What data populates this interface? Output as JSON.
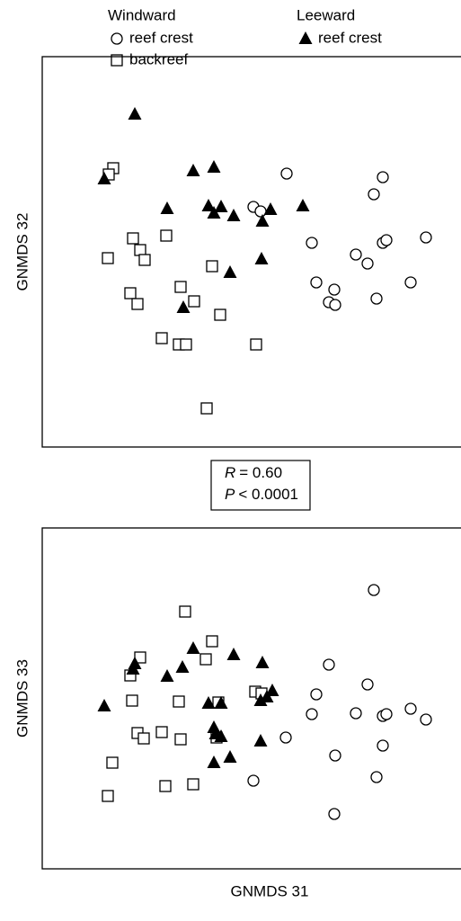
{
  "legend_groups": [
    "Windward",
    "Leeward"
  ],
  "chart_data": [
    {
      "type": "scatter",
      "ylabel": "GNMDS 32",
      "xlim": [
        0,
        466
      ],
      "ylim": [
        0,
        434
      ],
      "stat_lines": [
        [
          "R",
          "= 0.60"
        ],
        [
          "P",
          "< 0.0001"
        ]
      ],
      "series": [
        {
          "name": "reef crest",
          "group": 0,
          "marker": "circle",
          "color": "#000000",
          "x": [
            272,
            379,
            369,
            235,
            243,
            300,
            349,
            379,
            383,
            427,
            362,
            305,
            325,
            319,
            326,
            372,
            410
          ],
          "values": [
            304,
            300,
            281,
            267,
            262,
            227,
            214,
            227,
            230,
            233,
            204,
            183,
            175,
            161,
            158,
            165,
            183
          ]
        },
        {
          "name": "backreef",
          "group": 0,
          "marker": "square",
          "color": "#000000",
          "x": [
            79,
            74,
            101,
            138,
            109,
            114,
            73,
            189,
            98,
            106,
            154,
            169,
            198,
            133,
            152,
            160,
            238,
            183
          ],
          "values": [
            310,
            303,
            232,
            235,
            219,
            208,
            210,
            201,
            171,
            159,
            178,
            162,
            147,
            121,
            114,
            114,
            114,
            43
          ]
        },
        {
          "name": "reef crest",
          "group": 1,
          "marker": "triangle",
          "color": "#000000",
          "x": [
            103,
            69,
            168,
            191,
            139,
            185,
            199,
            191,
            213,
            254,
            290,
            245,
            244,
            209,
            157
          ],
          "values": [
            370,
            298,
            307,
            311,
            265,
            268,
            267,
            260,
            257,
            264,
            268,
            251,
            209,
            194,
            155
          ]
        }
      ]
    },
    {
      "type": "scatter",
      "ylabel": "GNMDS 33",
      "xlabel": "GNMDS 31",
      "xlim": [
        0,
        466
      ],
      "ylim": [
        0,
        379
      ],
      "series": [
        {
          "marker": "circle",
          "color": "#000000",
          "x": [
            369,
            319,
            362,
            305,
            300,
            349,
            379,
            383,
            410,
            427,
            271,
            379,
            326,
            372,
            235,
            325
          ],
          "values": [
            310,
            227,
            205,
            194,
            172,
            173,
            170,
            172,
            178,
            166,
            146,
            137,
            126,
            102,
            98,
            61
          ]
        },
        {
          "marker": "square",
          "color": "#000000",
          "x": [
            159,
            189,
            109,
            182,
            98,
            100,
            152,
            237,
            244,
            196,
            106,
            113,
            133,
            154,
            194,
            78,
            137,
            168,
            73
          ],
          "values": [
            286,
            253,
            235,
            233,
            215,
            187,
            186,
            197,
            195,
            185,
            151,
            145,
            152,
            144,
            146,
            118,
            92,
            94,
            81
          ]
        },
        {
          "marker": "triangle",
          "color": "#000000",
          "x": [
            103,
            101,
            168,
            213,
            245,
            139,
            156,
            69,
            185,
            199,
            250,
            256,
            243,
            191,
            193,
            199,
            243,
            191,
            209
          ],
          "values": [
            228,
            222,
            245,
            238,
            229,
            214,
            224,
            181,
            184,
            184,
            191,
            198,
            187,
            157,
            150,
            147,
            142,
            118,
            124
          ]
        }
      ]
    }
  ]
}
